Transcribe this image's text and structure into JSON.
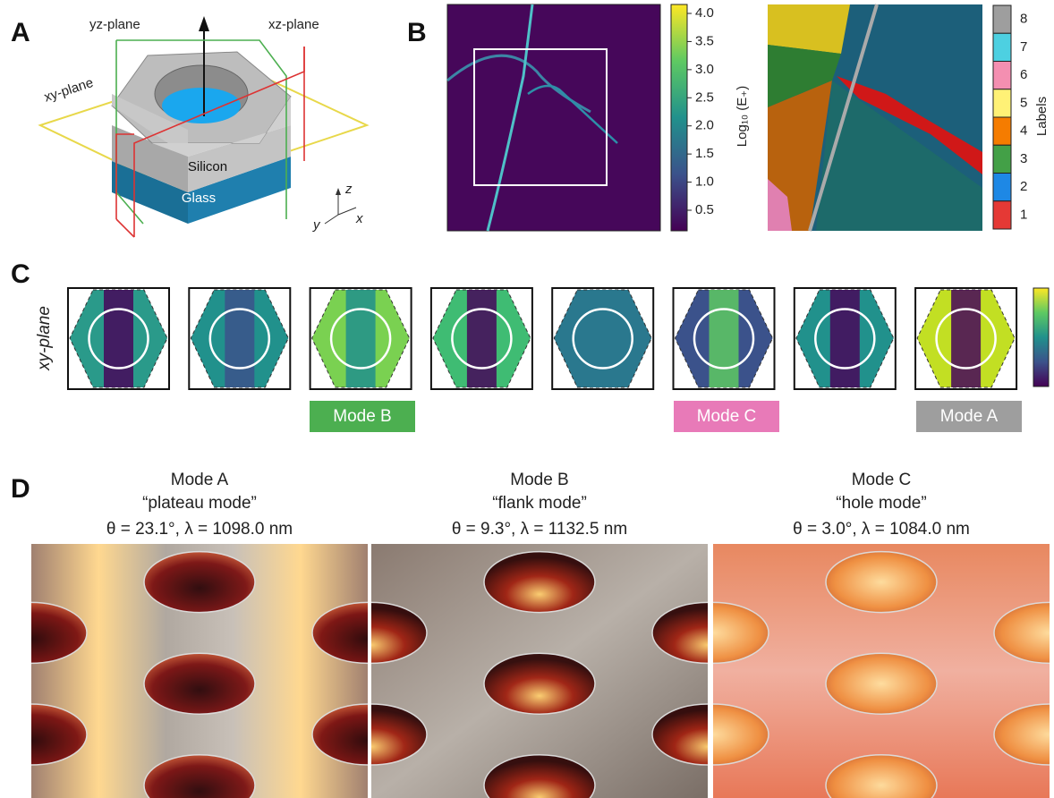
{
  "panels": {
    "a": {
      "label": "A",
      "planes": [
        "yz-plane",
        "xz-plane",
        "xy-plane"
      ],
      "materials": [
        "Silicon",
        "Glass"
      ],
      "axes": [
        "z",
        "y",
        "x"
      ]
    },
    "b": {
      "label": "B",
      "colorbar_field": {
        "ticks": [
          "4.0",
          "3.5",
          "3.0",
          "2.5",
          "2.0",
          "1.5",
          "1.0",
          "0.5"
        ],
        "title": "Log₁₀ (E₊)"
      },
      "colorbar_labels": {
        "ticks": [
          "8",
          "7",
          "6",
          "5",
          "4",
          "3",
          "2",
          "1"
        ],
        "title": "Labels"
      }
    },
    "c": {
      "label": "C",
      "row_label": "xy-plane",
      "tags": [
        "Mode B",
        "Mode C",
        "Mode A"
      ]
    },
    "d": {
      "label": "D",
      "modes": [
        {
          "name": "Mode A",
          "kind": "“plateau mode”",
          "params": "θ = 23.1°, λ = 1098.0 nm"
        },
        {
          "name": "Mode B",
          "kind": "“flank mode”",
          "params": "θ = 9.3°, λ = 1132.5 nm"
        },
        {
          "name": "Mode C",
          "kind": "“hole mode”",
          "params": "θ = 3.0°, λ = 1084.0 nm"
        }
      ]
    }
  }
}
